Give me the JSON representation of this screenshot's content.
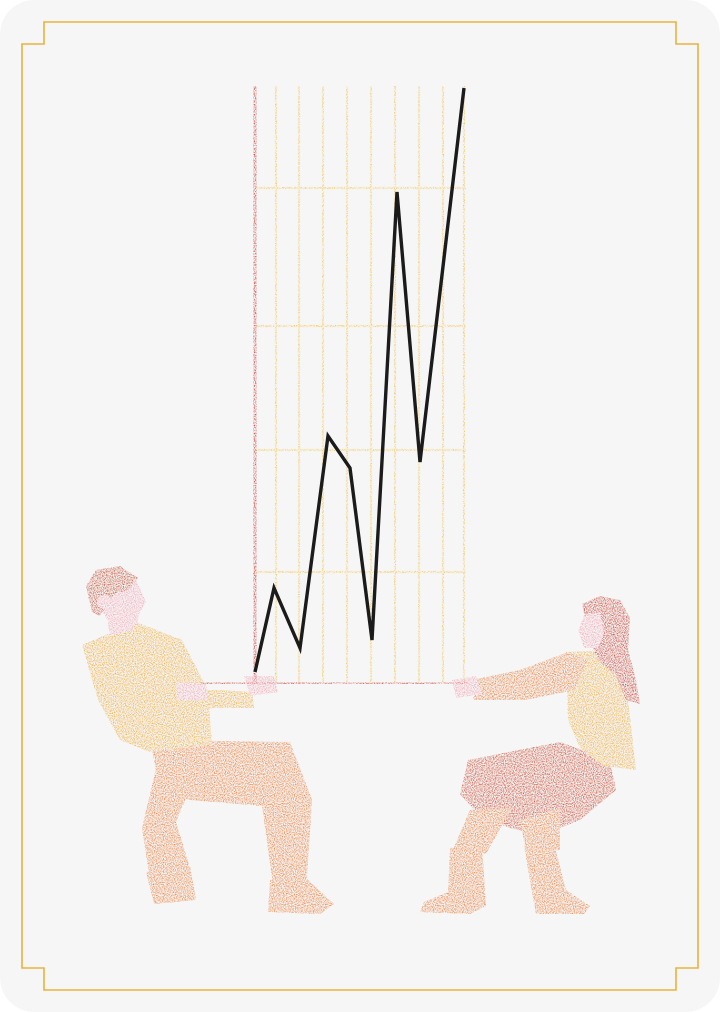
{
  "illustration": {
    "subject": "two-people-tug-of-war-over-rising-line-chart",
    "colors": {
      "background": "#f6f6f6",
      "frame": "#e8b33a",
      "grid": "#f0c34a",
      "axis": "#c7362a",
      "line": "#1b1b1b",
      "mustard": "#f0a936",
      "orange": "#ea7731",
      "red": "#c9452d",
      "pink": "#f3a0b0",
      "hair_man": "#c0472b",
      "hair_woman": "#c63a2b"
    }
  }
}
